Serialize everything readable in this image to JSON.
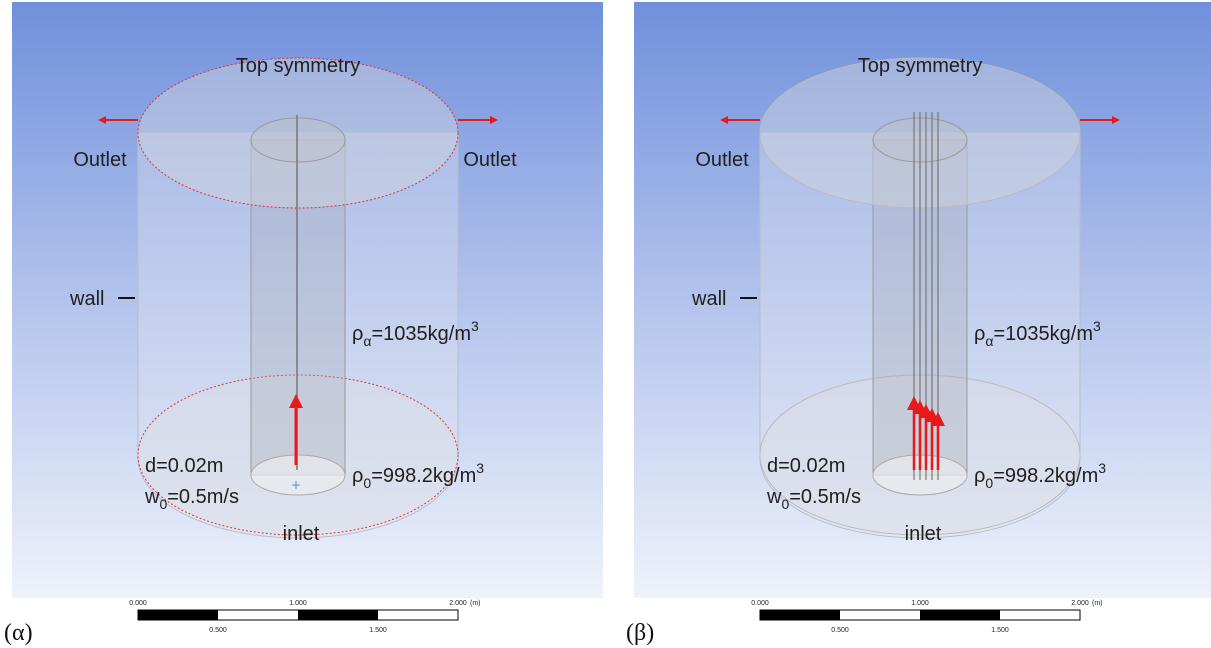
{
  "panels": [
    {
      "label": "(α)",
      "top": "Top symmetry",
      "outlet_left": "Outlet",
      "outlet_right": "Outlet",
      "wall": "wall",
      "density_medium": {
        "symbol": "ρ",
        "sub": "α",
        "text": "=1035kg/m",
        "sup": "3"
      },
      "diameter": "d=0.02m",
      "velocity": {
        "symbol": "w",
        "sub": "0",
        "text": "=0.5m/s"
      },
      "density_inlet": {
        "symbol": "ρ",
        "sub": "0",
        "text": "=998.2kg/m",
        "sup": "3"
      },
      "inlet": "inlet",
      "scale": {
        "top": [
          "0.000",
          "1.000",
          "2.000"
        ],
        "unit": "(m)",
        "bottom": [
          "0.500",
          "1.500"
        ]
      }
    },
    {
      "label": "(β)",
      "top": "Top symmetry",
      "outlet_left": "Outlet",
      "wall": "wall",
      "density_medium": {
        "symbol": "ρ",
        "sub": "α",
        "text": "=1035kg/m",
        "sup": "3"
      },
      "diameter": "d=0.02m",
      "velocity": {
        "symbol": "w",
        "sub": "0",
        "text": "=0.5m/s"
      },
      "density_inlet": {
        "symbol": "ρ",
        "sub": "0",
        "text": "=998.2kg/m",
        "sup": "3"
      },
      "inlet": "inlet",
      "scale": {
        "top": [
          "0.000",
          "1.000",
          "2.000"
        ],
        "unit": "(m)",
        "bottom": [
          "0.500",
          "1.500"
        ]
      }
    }
  ]
}
